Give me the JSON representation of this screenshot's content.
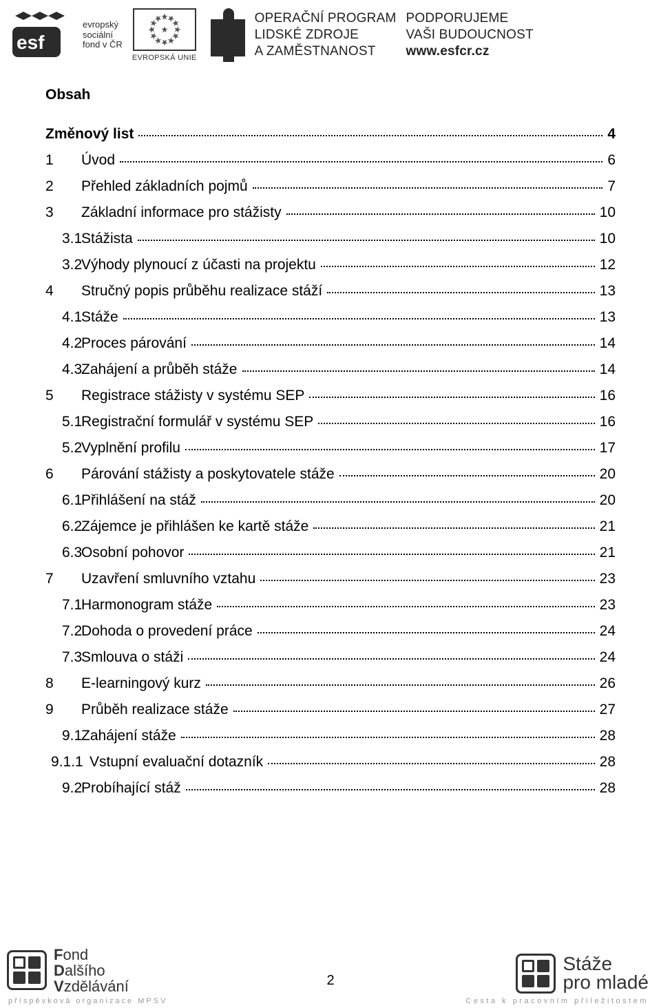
{
  "header": {
    "esf_lines": [
      "evropský",
      "sociální",
      "fond v ČR"
    ],
    "eu_caption": "EVROPSKÁ UNIE",
    "op_lines": [
      "OPERAČNÍ PROGRAM",
      "LIDSKÉ ZDROJE",
      "A ZAMĚSTNANOST"
    ],
    "support_lines": [
      "PODPORUJEME",
      "VAŠI BUDOUCNOST",
      "www.esfcr.cz"
    ]
  },
  "title": "Obsah",
  "toc": [
    {
      "num": "",
      "title": "Změnový list",
      "page": "4",
      "bold": true,
      "indent": 0,
      "numw": 0
    },
    {
      "num": "1",
      "title": "Úvod",
      "page": "6",
      "bold": false,
      "indent": 0,
      "numw": 52
    },
    {
      "num": "2",
      "title": "Přehled základních pojmů",
      "page": "7",
      "bold": false,
      "indent": 0,
      "numw": 52
    },
    {
      "num": "3",
      "title": "Základní informace pro stážisty",
      "page": "10",
      "bold": false,
      "indent": 0,
      "numw": 52
    },
    {
      "num": "3.1",
      "title": "Stážista",
      "page": "10",
      "bold": false,
      "indent": 1,
      "numw": 52
    },
    {
      "num": "3.2",
      "title": "Výhody plynoucí z účasti na projektu",
      "page": "12",
      "bold": false,
      "indent": 1,
      "numw": 52
    },
    {
      "num": "4",
      "title": "Stručný popis průběhu realizace stáží",
      "page": "13",
      "bold": false,
      "indent": 0,
      "numw": 52
    },
    {
      "num": "4.1",
      "title": "Stáže",
      "page": "13",
      "bold": false,
      "indent": 1,
      "numw": 52
    },
    {
      "num": "4.2",
      "title": "Proces párování",
      "page": "14",
      "bold": false,
      "indent": 1,
      "numw": 52
    },
    {
      "num": "4.3",
      "title": "Zahájení a průběh stáže",
      "page": "14",
      "bold": false,
      "indent": 1,
      "numw": 52
    },
    {
      "num": "5",
      "title": "Registrace stážisty v systému SEP",
      "page": "16",
      "bold": false,
      "indent": 0,
      "numw": 52
    },
    {
      "num": "5.1",
      "title": "Registrační formulář v systému SEP",
      "page": "16",
      "bold": false,
      "indent": 1,
      "numw": 52
    },
    {
      "num": "5.2",
      "title": "Vyplnění profilu",
      "page": "17",
      "bold": false,
      "indent": 1,
      "numw": 52
    },
    {
      "num": "6",
      "title": "Párování stážisty a poskytovatele stáže",
      "page": "20",
      "bold": false,
      "indent": 0,
      "numw": 52
    },
    {
      "num": "6.1",
      "title": "Přihlášení na stáž",
      "page": "20",
      "bold": false,
      "indent": 1,
      "numw": 52
    },
    {
      "num": "6.2",
      "title": "Zájemce je přihlášen ke kartě stáže",
      "page": "21",
      "bold": false,
      "indent": 1,
      "numw": 52
    },
    {
      "num": "6.3",
      "title": "Osobní pohovor",
      "page": "21",
      "bold": false,
      "indent": 1,
      "numw": 52
    },
    {
      "num": "7",
      "title": "Uzavření smluvního vztahu",
      "page": "23",
      "bold": false,
      "indent": 0,
      "numw": 52
    },
    {
      "num": "7.1",
      "title": "Harmonogram stáže",
      "page": "23",
      "bold": false,
      "indent": 1,
      "numw": 52
    },
    {
      "num": "7.2",
      "title": "Dohoda o provedení práce",
      "page": "24",
      "bold": false,
      "indent": 1,
      "numw": 52
    },
    {
      "num": "7.3",
      "title": "Smlouva o stáži",
      "page": "24",
      "bold": false,
      "indent": 1,
      "numw": 52
    },
    {
      "num": "8",
      "title": "E-learningový kurz",
      "page": "26",
      "bold": false,
      "indent": 0,
      "numw": 52
    },
    {
      "num": "9",
      "title": "Průběh realizace stáže",
      "page": "27",
      "bold": false,
      "indent": 0,
      "numw": 52
    },
    {
      "num": "9.1",
      "title": "Zahájení stáže",
      "page": "28",
      "bold": false,
      "indent": 1,
      "numw": 52
    },
    {
      "num": "9.1.1",
      "title": "Vstupní evaluační dotazník",
      "page": "28",
      "bold": false,
      "indent": 2,
      "numw": 64
    },
    {
      "num": "9.2",
      "title": "Probíhající stáž",
      "page": "28",
      "bold": false,
      "indent": 1,
      "numw": 52
    }
  ],
  "footer": {
    "fdv_lines": [
      "Fond",
      "Dalšího",
      "Vzdělávání"
    ],
    "fdv_sub": "příspěvková organizace MPSV",
    "page_number": "2",
    "spm_lines": [
      "Stáže",
      "pro mladé"
    ],
    "spm_sub": "Cesta k pracovním příležitostem"
  },
  "colors": {
    "text": "#000000",
    "muted": "#9a9a9a",
    "logo": "#333333",
    "bg": "#ffffff"
  }
}
